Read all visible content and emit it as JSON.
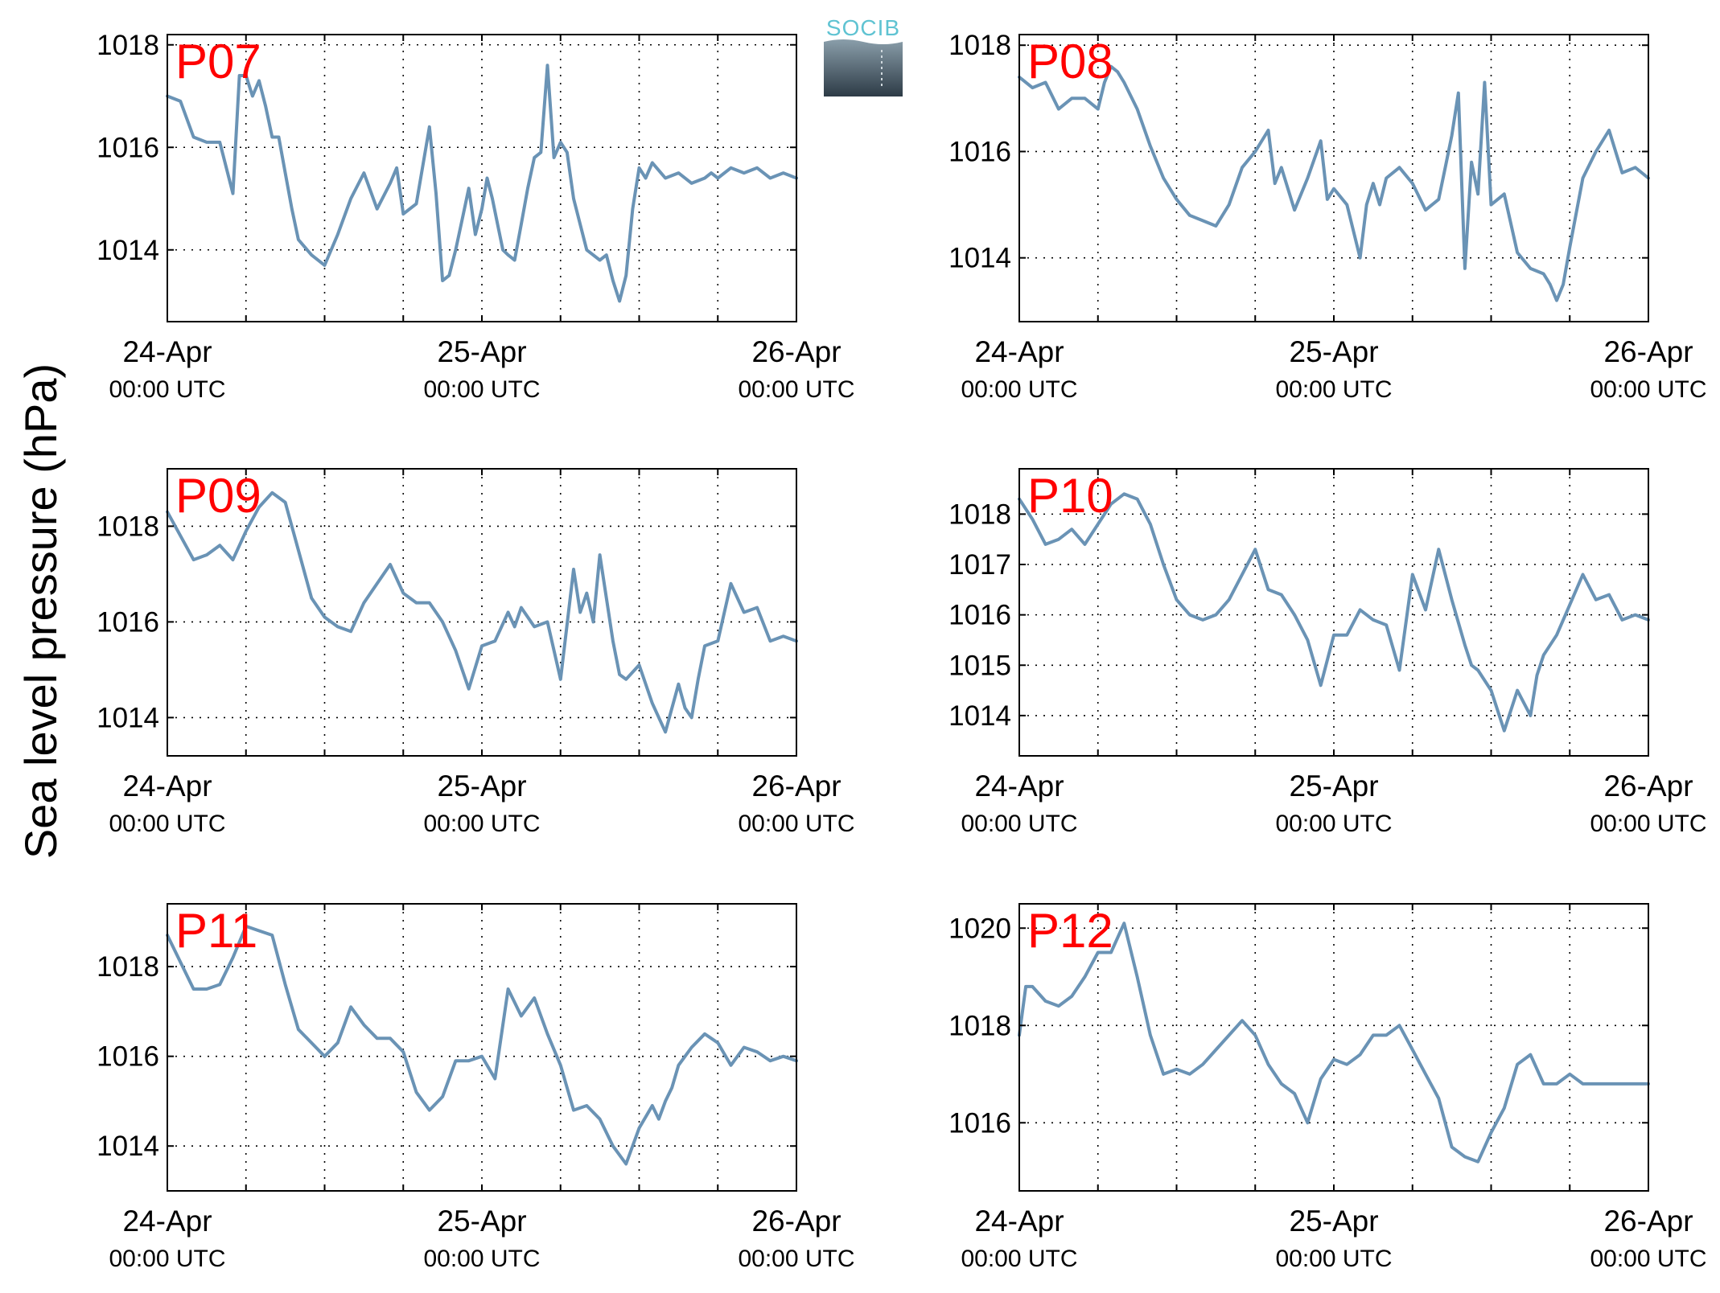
{
  "figure": {
    "ylabel": "Sea level pressure (hPa)",
    "logo_text": "SOCIB",
    "line_color": "#6a93b5",
    "label_color": "#ff0000"
  },
  "chart_data": [
    {
      "type": "line",
      "name": "P07",
      "x_ticks": [
        {
          "date": "24-Apr",
          "time": "00:00 UTC"
        },
        {
          "date": "25-Apr",
          "time": "00:00 UTC"
        },
        {
          "date": "26-Apr",
          "time": "00:00 UTC"
        }
      ],
      "x_range_hours": [
        0,
        48
      ],
      "ylim": [
        1012.6,
        1018.2
      ],
      "yticks": [
        1014,
        1016,
        1018
      ],
      "grid": true,
      "series": [
        {
          "x": [
            0,
            1,
            2,
            3,
            3.5,
            4,
            5,
            5.5,
            6,
            6.5,
            7,
            7.5,
            8,
            8.5,
            9,
            9.5,
            10,
            11,
            12,
            13,
            14,
            15,
            16,
            17,
            17.5,
            18,
            19,
            20,
            20.5,
            21,
            21.5,
            22,
            22.5,
            23,
            23.5,
            24,
            24.4,
            24.8,
            25.2,
            25.6,
            26,
            26.5,
            27,
            27.5,
            28,
            28.5,
            29,
            29.5,
            30,
            30.5,
            31,
            32,
            33,
            33.5,
            34,
            34.5,
            35,
            35.5,
            36,
            36.5,
            37,
            38,
            39,
            40,
            41,
            41.5,
            42,
            43,
            44,
            45,
            46,
            47,
            48
          ],
          "y": [
            1017.0,
            1016.9,
            1016.2,
            1016.1,
            1016.1,
            1016.1,
            1015.1,
            1017.4,
            1017.4,
            1017.0,
            1017.3,
            1016.8,
            1016.2,
            1016.2,
            1015.5,
            1014.8,
            1014.2,
            1013.9,
            1013.7,
            1014.3,
            1015.0,
            1015.5,
            1014.8,
            1015.3,
            1015.6,
            1014.7,
            1014.9,
            1016.4,
            1015.1,
            1013.4,
            1013.5,
            1014.0,
            1014.6,
            1015.2,
            1014.3,
            1014.8,
            1015.4,
            1015.0,
            1014.5,
            1014.0,
            1013.9,
            1013.8,
            1014.5,
            1015.2,
            1015.8,
            1015.9,
            1017.6,
            1015.8,
            1016.1,
            1015.9,
            1015.0,
            1014.0,
            1013.8,
            1013.9,
            1013.4,
            1013.0,
            1013.5,
            1014.8,
            1015.6,
            1015.4,
            1015.7,
            1015.4,
            1015.5,
            1015.3,
            1015.4,
            1015.5,
            1015.4,
            1015.6,
            1015.5,
            1015.6,
            1015.4,
            1015.5,
            1015.4
          ]
        }
      ]
    },
    {
      "type": "line",
      "name": "P08",
      "x_ticks": [
        {
          "date": "24-Apr",
          "time": "00:00 UTC"
        },
        {
          "date": "25-Apr",
          "time": "00:00 UTC"
        },
        {
          "date": "26-Apr",
          "time": "00:00 UTC"
        }
      ],
      "x_range_hours": [
        0,
        48
      ],
      "ylim": [
        1012.8,
        1018.2
      ],
      "yticks": [
        1014,
        1016,
        1018
      ],
      "grid": true,
      "series": [
        {
          "x": [
            0,
            1,
            2,
            3,
            4,
            5,
            6,
            6.5,
            7,
            7.5,
            8,
            9,
            10,
            11,
            12,
            13,
            14,
            15,
            16,
            17,
            18,
            19,
            19.5,
            20,
            21,
            22,
            23,
            23.5,
            24,
            25,
            26,
            26.5,
            27,
            27.5,
            28,
            29,
            30,
            31,
            32,
            32.5,
            33,
            33.5,
            34,
            34.5,
            35,
            35.5,
            36,
            37,
            38,
            39,
            40,
            40.5,
            41,
            41.5,
            42,
            43,
            44,
            45,
            46,
            47,
            48
          ],
          "y": [
            1017.4,
            1017.2,
            1017.3,
            1016.8,
            1017.0,
            1017.0,
            1016.8,
            1017.3,
            1017.6,
            1017.5,
            1017.3,
            1016.8,
            1016.1,
            1015.5,
            1015.1,
            1014.8,
            1014.7,
            1014.6,
            1015.0,
            1015.7,
            1016.0,
            1016.4,
            1015.4,
            1015.7,
            1014.9,
            1015.5,
            1016.2,
            1015.1,
            1015.3,
            1015.0,
            1014.0,
            1015.0,
            1015.4,
            1015.0,
            1015.5,
            1015.7,
            1015.4,
            1014.9,
            1015.1,
            1015.7,
            1016.3,
            1017.1,
            1013.8,
            1015.8,
            1015.2,
            1017.3,
            1015.0,
            1015.2,
            1014.1,
            1013.8,
            1013.7,
            1013.5,
            1013.2,
            1013.5,
            1014.2,
            1015.5,
            1016.0,
            1016.4,
            1015.6,
            1015.7,
            1015.5
          ]
        }
      ]
    },
    {
      "type": "line",
      "name": "P09",
      "x_ticks": [
        {
          "date": "24-Apr",
          "time": "00:00 UTC"
        },
        {
          "date": "25-Apr",
          "time": "00:00 UTC"
        },
        {
          "date": "26-Apr",
          "time": "00:00 UTC"
        }
      ],
      "x_range_hours": [
        0,
        48
      ],
      "ylim": [
        1013.2,
        1019.2
      ],
      "yticks": [
        1014,
        1016,
        1018
      ],
      "grid": true,
      "series": [
        {
          "x": [
            0,
            1,
            2,
            3,
            4,
            5,
            6,
            7,
            8,
            9,
            10,
            11,
            12,
            13,
            14,
            15,
            16,
            17,
            18,
            19,
            20,
            21,
            22,
            23,
            24,
            25,
            26,
            26.5,
            27,
            28,
            29,
            30,
            31,
            31.5,
            32,
            32.5,
            33,
            34,
            34.5,
            35,
            36,
            37,
            38,
            39,
            39.5,
            40,
            40.5,
            41,
            42,
            43,
            44,
            45,
            46,
            47,
            48
          ],
          "y": [
            1018.3,
            1017.8,
            1017.3,
            1017.4,
            1017.6,
            1017.3,
            1017.9,
            1018.4,
            1018.7,
            1018.5,
            1017.5,
            1016.5,
            1016.1,
            1015.9,
            1015.8,
            1016.4,
            1016.8,
            1017.2,
            1016.6,
            1016.4,
            1016.4,
            1016.0,
            1015.4,
            1014.6,
            1015.5,
            1015.6,
            1016.2,
            1015.9,
            1016.3,
            1015.9,
            1016.0,
            1014.8,
            1017.1,
            1016.2,
            1016.6,
            1016.0,
            1017.4,
            1015.6,
            1014.9,
            1014.8,
            1015.1,
            1014.3,
            1013.7,
            1014.7,
            1014.2,
            1014.0,
            1014.8,
            1015.5,
            1015.6,
            1016.8,
            1016.2,
            1016.3,
            1015.6,
            1015.7,
            1015.6
          ]
        }
      ]
    },
    {
      "type": "line",
      "name": "P10",
      "x_ticks": [
        {
          "date": "24-Apr",
          "time": "00:00 UTC"
        },
        {
          "date": "25-Apr",
          "time": "00:00 UTC"
        },
        {
          "date": "26-Apr",
          "time": "00:00 UTC"
        }
      ],
      "x_range_hours": [
        0,
        48
      ],
      "ylim": [
        1013.2,
        1018.9
      ],
      "yticks": [
        1014,
        1015,
        1016,
        1017,
        1018
      ],
      "grid": true,
      "series": [
        {
          "x": [
            0,
            1,
            2,
            3,
            4,
            5,
            6,
            7,
            8,
            9,
            10,
            11,
            12,
            13,
            14,
            15,
            16,
            17,
            18,
            19,
            20,
            21,
            22,
            23,
            24,
            25,
            26,
            27,
            28,
            29,
            30,
            31,
            32,
            33,
            34,
            34.5,
            35,
            36,
            37,
            38,
            39,
            39.5,
            40,
            41,
            42,
            43,
            44,
            45,
            46,
            47,
            48
          ],
          "y": [
            1018.3,
            1017.9,
            1017.4,
            1017.5,
            1017.7,
            1017.4,
            1017.8,
            1018.2,
            1018.4,
            1018.3,
            1017.8,
            1017.0,
            1016.3,
            1016.0,
            1015.9,
            1016.0,
            1016.3,
            1016.8,
            1017.3,
            1016.5,
            1016.4,
            1016.0,
            1015.5,
            1014.6,
            1015.6,
            1015.6,
            1016.1,
            1015.9,
            1015.8,
            1014.9,
            1016.8,
            1016.1,
            1017.3,
            1016.3,
            1015.4,
            1015.0,
            1014.9,
            1014.5,
            1013.7,
            1014.5,
            1014.0,
            1014.8,
            1015.2,
            1015.6,
            1016.2,
            1016.8,
            1016.3,
            1016.4,
            1015.9,
            1016.0,
            1015.9
          ]
        }
      ]
    },
    {
      "type": "line",
      "name": "P11",
      "x_ticks": [
        {
          "date": "24-Apr",
          "time": "00:00 UTC"
        },
        {
          "date": "25-Apr",
          "time": "00:00 UTC"
        },
        {
          "date": "26-Apr",
          "time": "00:00 UTC"
        }
      ],
      "x_range_hours": [
        0,
        48
      ],
      "ylim": [
        1013.0,
        1019.4
      ],
      "yticks": [
        1014,
        1016,
        1018
      ],
      "grid": true,
      "series": [
        {
          "x": [
            0,
            1,
            2,
            3,
            4,
            5,
            6,
            7,
            8,
            9,
            10,
            11,
            12,
            13,
            14,
            15,
            16,
            17,
            18,
            19,
            20,
            21,
            22,
            23,
            24,
            25,
            26,
            27,
            28,
            29,
            30,
            31,
            32,
            33,
            34,
            35,
            36,
            37,
            37.5,
            38,
            38.5,
            39,
            40,
            41,
            42,
            43,
            44,
            45,
            46,
            47,
            48
          ],
          "y": [
            1018.7,
            1018.1,
            1017.5,
            1017.5,
            1017.6,
            1018.2,
            1018.9,
            1018.8,
            1018.7,
            1017.6,
            1016.6,
            1016.3,
            1016.0,
            1016.3,
            1017.1,
            1016.7,
            1016.4,
            1016.4,
            1016.1,
            1015.2,
            1014.8,
            1015.1,
            1015.9,
            1015.9,
            1016.0,
            1015.5,
            1017.5,
            1016.9,
            1017.3,
            1016.5,
            1015.8,
            1014.8,
            1014.9,
            1014.6,
            1014.0,
            1013.6,
            1014.4,
            1014.9,
            1014.6,
            1015.0,
            1015.3,
            1015.8,
            1016.2,
            1016.5,
            1016.3,
            1015.8,
            1016.2,
            1016.1,
            1015.9,
            1016.0,
            1015.9
          ]
        }
      ]
    },
    {
      "type": "line",
      "name": "P12",
      "x_ticks": [
        {
          "date": "24-Apr",
          "time": "00:00 UTC"
        },
        {
          "date": "25-Apr",
          "time": "00:00 UTC"
        },
        {
          "date": "26-Apr",
          "time": "00:00 UTC"
        }
      ],
      "x_range_hours": [
        0,
        48
      ],
      "ylim": [
        1014.6,
        1020.5
      ],
      "yticks": [
        1016,
        1018,
        1020
      ],
      "grid": true,
      "series": [
        {
          "x": [
            0,
            0.5,
            1,
            2,
            3,
            4,
            5,
            6,
            7,
            8,
            9,
            10,
            11,
            12,
            13,
            14,
            15,
            16,
            17,
            18,
            19,
            20,
            21,
            22,
            23,
            24,
            25,
            26,
            27,
            28,
            29,
            30,
            31,
            32,
            33,
            34,
            35,
            36,
            37,
            38,
            39,
            40,
            41,
            42,
            43,
            44,
            45,
            46,
            47,
            48
          ],
          "y": [
            1017.8,
            1018.8,
            1018.8,
            1018.5,
            1018.4,
            1018.6,
            1019.0,
            1019.5,
            1019.5,
            1020.1,
            1019.0,
            1017.8,
            1017.0,
            1017.1,
            1017.0,
            1017.2,
            1017.5,
            1017.8,
            1018.1,
            1017.8,
            1017.2,
            1016.8,
            1016.6,
            1016.0,
            1016.9,
            1017.3,
            1017.2,
            1017.4,
            1017.8,
            1017.8,
            1018.0,
            1017.5,
            1017.0,
            1016.5,
            1015.5,
            1015.3,
            1015.2,
            1015.8,
            1016.3,
            1017.2,
            1017.4,
            1016.8,
            1016.8,
            1017.0,
            1016.8,
            1016.8,
            1016.8,
            1016.8,
            1016.8,
            1016.8
          ]
        }
      ]
    }
  ]
}
